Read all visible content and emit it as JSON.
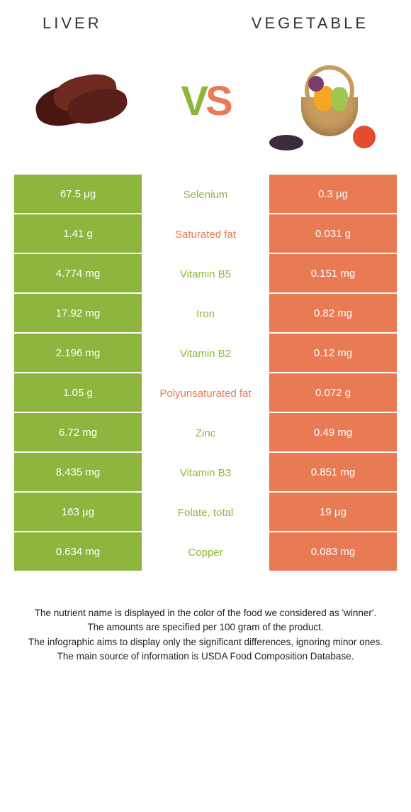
{
  "left_title": "Liver",
  "right_title": "Vegetable",
  "vs_v": "V",
  "vs_s": "S",
  "colors": {
    "liver": "#8eb63e",
    "vegetable": "#e87a54",
    "liver_dark": "#5a1f18",
    "liver_mid": "#6e2a1f",
    "basket": "#c79b5e"
  },
  "rows": [
    {
      "left": "67.5 µg",
      "label": "Selenium",
      "right": "0.3 µg",
      "winner": "liver"
    },
    {
      "left": "1.41 g",
      "label": "Saturated fat",
      "right": "0.031 g",
      "winner": "vegetable"
    },
    {
      "left": "4.774 mg",
      "label": "Vitamin B5",
      "right": "0.151 mg",
      "winner": "liver"
    },
    {
      "left": "17.92 mg",
      "label": "Iron",
      "right": "0.82 mg",
      "winner": "liver"
    },
    {
      "left": "2.196 mg",
      "label": "Vitamin B2",
      "right": "0.12 mg",
      "winner": "liver"
    },
    {
      "left": "1.05 g",
      "label": "Polyunsaturated fat",
      "right": "0.072 g",
      "winner": "vegetable"
    },
    {
      "left": "6.72 mg",
      "label": "Zinc",
      "right": "0.49 mg",
      "winner": "liver"
    },
    {
      "left": "8.435 mg",
      "label": "Vitamin B3",
      "right": "0.851 mg",
      "winner": "liver"
    },
    {
      "left": "163 µg",
      "label": "Folate, total",
      "right": "19 µg",
      "winner": "liver"
    },
    {
      "left": "0.634 mg",
      "label": "Copper",
      "right": "0.083 mg",
      "winner": "liver"
    }
  ],
  "caption": {
    "line1": "The nutrient name is displayed in the color of the food we considered as 'winner'.",
    "line2": "The amounts are specified per 100 gram of the product.",
    "line3": "The infographic aims to display only the significant differences, ignoring minor ones.",
    "line4": "The main source of information is USDA Food Composition Database."
  }
}
